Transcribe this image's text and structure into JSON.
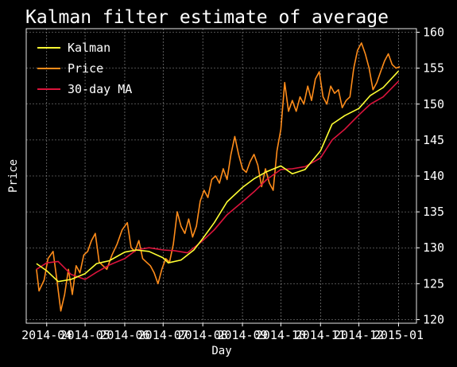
{
  "chart_data": {
    "type": "line",
    "title": "Kalman filter estimate of average",
    "xlabel": "Day",
    "ylabel": "Price",
    "ylim": [
      119.5,
      160.5
    ],
    "xlim": [
      "2014-03-16",
      "2015-01-15"
    ],
    "y_ticks": [
      120,
      125,
      130,
      135,
      140,
      145,
      150,
      155,
      160
    ],
    "x_ticks": [
      "2014-04",
      "2014-05",
      "2014-06",
      "2014-07",
      "2014-08",
      "2014-09",
      "2014-10",
      "2014-11",
      "2014-12",
      "2015-01"
    ],
    "grid": true,
    "legend_position": "top-left",
    "y_axis_side": "right",
    "series": [
      {
        "name": "Kalman",
        "color": "#ffff33",
        "x": [
          "2014-03-24",
          "2014-04-01",
          "2014-04-10",
          "2014-04-20",
          "2014-05-01",
          "2014-05-10",
          "2014-05-20",
          "2014-06-01",
          "2014-06-10",
          "2014-06-20",
          "2014-07-01",
          "2014-07-05",
          "2014-07-15",
          "2014-07-25",
          "2014-08-01",
          "2014-08-10",
          "2014-08-20",
          "2014-09-01",
          "2014-09-10",
          "2014-09-20",
          "2014-10-01",
          "2014-10-10",
          "2014-10-20",
          "2014-11-01",
          "2014-11-10",
          "2014-11-20",
          "2014-12-01",
          "2014-12-10",
          "2014-12-20",
          "2015-01-01"
        ],
        "values": [
          127.8,
          126.8,
          125.3,
          125.6,
          126.4,
          127.8,
          128.2,
          129.4,
          129.7,
          129.5,
          128.6,
          127.9,
          128.3,
          129.7,
          131.3,
          133.5,
          136.4,
          138.4,
          139.6,
          140.6,
          141.4,
          140.3,
          140.9,
          143.5,
          147.2,
          148.4,
          149.4,
          151.2,
          152.3,
          154.6
        ]
      },
      {
        "name": "Price",
        "color": "#ff8c1a",
        "x": [
          "2014-03-24",
          "2014-03-26",
          "2014-03-30",
          "2014-04-02",
          "2014-04-06",
          "2014-04-09",
          "2014-04-12",
          "2014-04-15",
          "2014-04-18",
          "2014-04-21",
          "2014-04-24",
          "2014-04-27",
          "2014-04-30",
          "2014-05-03",
          "2014-05-06",
          "2014-05-09",
          "2014-05-12",
          "2014-05-15",
          "2014-05-18",
          "2014-05-22",
          "2014-05-26",
          "2014-05-30",
          "2014-06-03",
          "2014-06-06",
          "2014-06-09",
          "2014-06-12",
          "2014-06-15",
          "2014-06-18",
          "2014-06-21",
          "2014-06-24",
          "2014-06-27",
          "2014-06-30",
          "2014-07-03",
          "2014-07-06",
          "2014-07-09",
          "2014-07-12",
          "2014-07-15",
          "2014-07-18",
          "2014-07-21",
          "2014-07-24",
          "2014-07-27",
          "2014-07-30",
          "2014-08-02",
          "2014-08-05",
          "2014-08-08",
          "2014-08-11",
          "2014-08-14",
          "2014-08-17",
          "2014-08-20",
          "2014-08-23",
          "2014-08-26",
          "2014-08-29",
          "2014-09-01",
          "2014-09-04",
          "2014-09-07",
          "2014-09-10",
          "2014-09-13",
          "2014-09-16",
          "2014-09-19",
          "2014-09-22",
          "2014-09-25",
          "2014-09-28",
          "2014-10-01",
          "2014-10-04",
          "2014-10-07",
          "2014-10-10",
          "2014-10-13",
          "2014-10-16",
          "2014-10-19",
          "2014-10-22",
          "2014-10-25",
          "2014-10-28",
          "2014-10-31",
          "2014-11-03",
          "2014-11-06",
          "2014-11-09",
          "2014-11-12",
          "2014-11-15",
          "2014-11-18",
          "2014-11-21",
          "2014-11-24",
          "2014-11-27",
          "2014-11-30",
          "2014-12-03",
          "2014-12-06",
          "2014-12-09",
          "2014-12-12",
          "2014-12-15",
          "2014-12-18",
          "2014-12-21",
          "2014-12-24",
          "2014-12-27",
          "2014-12-30",
          "2015-01-02"
        ],
        "values": [
          127.0,
          124.0,
          125.5,
          128.5,
          129.5,
          125.5,
          121.2,
          123.5,
          127.0,
          123.5,
          127.5,
          126.5,
          129.0,
          129.5,
          131.0,
          132.0,
          128.0,
          127.5,
          127.0,
          129.0,
          130.5,
          132.5,
          133.5,
          130.0,
          129.5,
          131.0,
          128.5,
          128.0,
          127.5,
          126.5,
          125.0,
          127.0,
          128.5,
          128.0,
          130.5,
          135.0,
          133.0,
          132.0,
          134.0,
          131.5,
          133.0,
          136.5,
          138.0,
          137.0,
          139.5,
          140.0,
          139.0,
          141.0,
          139.5,
          143.0,
          145.5,
          143.0,
          141.0,
          140.5,
          142.0,
          143.0,
          141.5,
          138.5,
          141.0,
          139.0,
          138.0,
          143.5,
          146.5,
          153.0,
          149.0,
          150.5,
          149.0,
          151.0,
          150.0,
          152.5,
          150.5,
          153.5,
          154.5,
          151.0,
          150.0,
          152.5,
          151.5,
          152.0,
          149.5,
          150.5,
          151.0,
          155.0,
          157.5,
          158.5,
          157.0,
          155.0,
          152.0,
          153.0,
          154.5,
          156.0,
          157.0,
          155.5,
          155.0,
          155.2
        ]
      },
      {
        "name": "30-day MA",
        "color": "#dc143c",
        "x": [
          "2014-03-24",
          "2014-04-01",
          "2014-04-10",
          "2014-04-20",
          "2014-05-01",
          "2014-05-10",
          "2014-05-20",
          "2014-06-01",
          "2014-06-10",
          "2014-06-20",
          "2014-07-01",
          "2014-07-10",
          "2014-07-20",
          "2014-08-01",
          "2014-08-10",
          "2014-08-20",
          "2014-09-01",
          "2014-09-10",
          "2014-09-20",
          "2014-10-01",
          "2014-10-10",
          "2014-10-20",
          "2014-11-01",
          "2014-11-10",
          "2014-11-20",
          "2014-12-01",
          "2014-12-10",
          "2014-12-20",
          "2015-01-01"
        ],
        "values": [
          127.0,
          127.9,
          128.1,
          126.3,
          125.6,
          126.6,
          127.6,
          128.5,
          129.7,
          130.0,
          129.7,
          129.6,
          129.3,
          131.0,
          132.5,
          134.6,
          136.4,
          137.8,
          139.5,
          140.9,
          141.0,
          141.3,
          142.5,
          145.0,
          146.5,
          148.5,
          150.0,
          151.0,
          153.2
        ]
      }
    ]
  }
}
